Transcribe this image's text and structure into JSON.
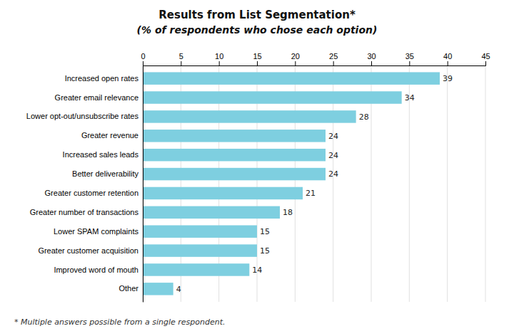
{
  "chart_data": {
    "type": "bar",
    "orientation": "horizontal",
    "title": "Results from List Segmentation*",
    "subtitle": "(% of respondents who chose each option)",
    "categories": [
      "Other",
      "Improved word of mouth",
      "Greater customer acquisition",
      "Lower SPAM complaints",
      "Greater number of transactions",
      "Greater customer retention",
      "Better deliverability",
      "Increased sales leads",
      "Greater revenue",
      "Lower opt-out/unsubscribe rates",
      "Greater email relevance",
      "Increased open rates"
    ],
    "values": [
      4,
      14,
      15,
      15,
      18,
      21,
      24,
      24,
      24,
      28,
      34,
      39
    ],
    "color": "#7ECFE0",
    "xlim": [
      0,
      45
    ],
    "xticks": [
      0,
      5,
      10,
      15,
      20,
      25,
      30,
      35,
      40,
      45
    ],
    "grid": true,
    "data_labels": true,
    "annotation": "* Multiple answers possible from a single respondent."
  }
}
